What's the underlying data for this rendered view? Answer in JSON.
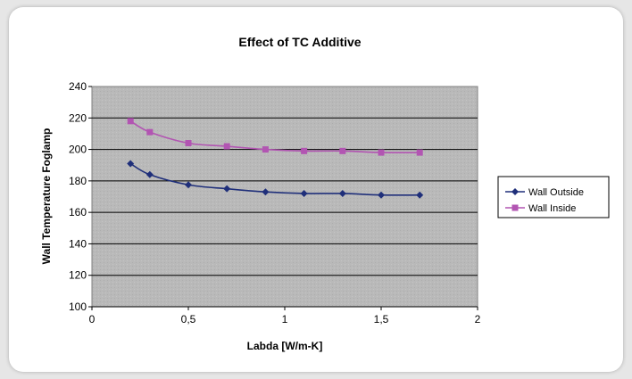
{
  "chart_data": {
    "type": "line",
    "title": "Effect of TC Additive",
    "xlabel": "Labda [W/m-K]",
    "ylabel": "Wall Temperature Foglamp",
    "xlim": [
      0,
      2
    ],
    "ylim": [
      100,
      240
    ],
    "x_ticks": [
      "0",
      "0,5",
      "1",
      "1,5",
      "2"
    ],
    "x_tick_values": [
      0,
      0.5,
      1,
      1.5,
      2
    ],
    "y_ticks": [
      "100",
      "120",
      "140",
      "160",
      "180",
      "200",
      "220",
      "240"
    ],
    "y_tick_values": [
      100,
      120,
      140,
      160,
      180,
      200,
      220,
      240
    ],
    "grid": "horizontal",
    "legend_position": "right",
    "series": [
      {
        "name": "Wall Outside",
        "color": "#1f2f7a",
        "marker": "diamond",
        "x": [
          0.2,
          0.3,
          0.5,
          0.7,
          0.9,
          1.1,
          1.3,
          1.5,
          1.7
        ],
        "y": [
          191,
          184,
          177.5,
          175,
          173,
          172,
          172,
          171,
          171
        ]
      },
      {
        "name": "Wall Inside",
        "color": "#b255b2",
        "marker": "square",
        "x": [
          0.2,
          0.3,
          0.5,
          0.7,
          0.9,
          1.1,
          1.3,
          1.5,
          1.7
        ],
        "y": [
          218,
          211,
          204,
          202,
          200,
          199,
          199,
          198,
          198
        ]
      }
    ]
  }
}
